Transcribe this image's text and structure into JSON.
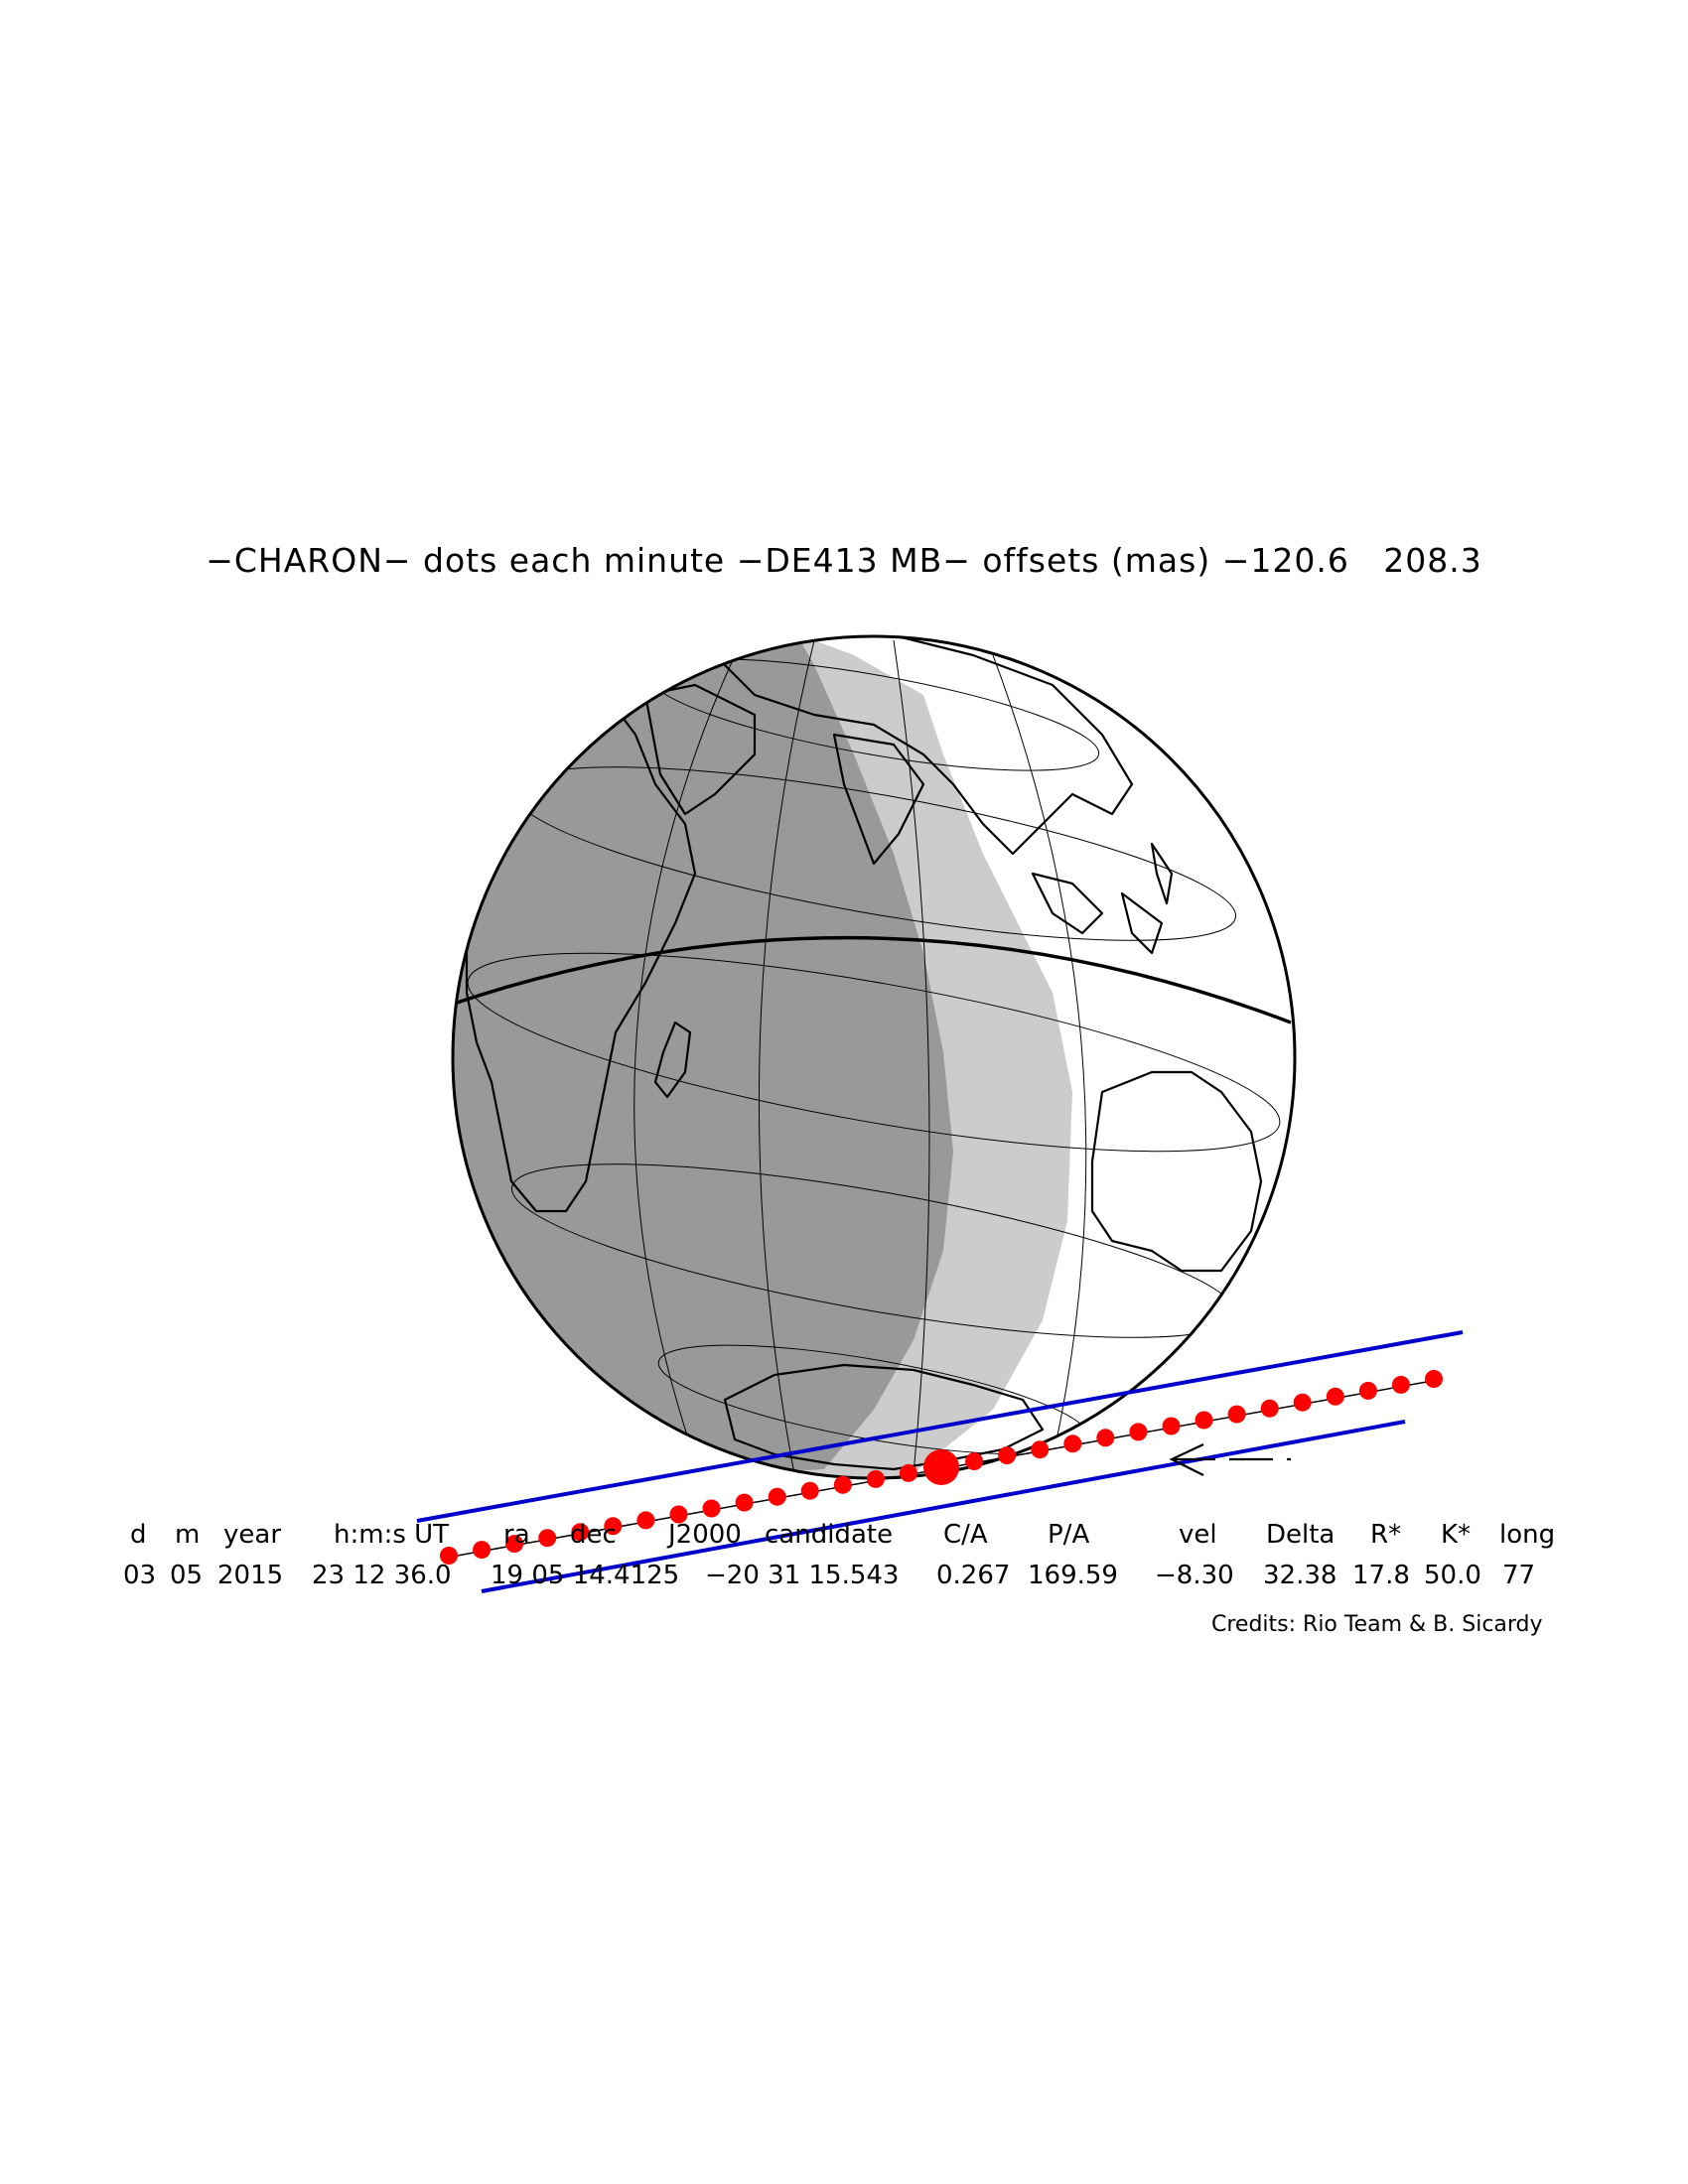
{
  "title": "−CHARON− dots each minute −DE413 MB− offsets (mas) −120.6   208.3",
  "table": {
    "headers": [
      "d",
      "m",
      "year",
      "h:m:s UT",
      "ra",
      "dec",
      "J2000",
      "candidate",
      "C/A",
      "P/A",
      "vel",
      "Delta",
      "R*",
      "K*",
      "long"
    ],
    "values": [
      "03",
      "05",
      "2015",
      "23 12 36.0",
      "19 05 14.4125",
      "−20 31 15.543",
      "0.267",
      "169.59",
      "−8.30",
      "32.38",
      "17.8",
      "50.0",
      "77"
    ]
  },
  "credits": "Credits: Rio Team & B. Sicardy",
  "colors": {
    "night": "#999999",
    "twilight": "#cccccc",
    "day": "#ffffff",
    "path_limits": "#0000cc",
    "dots": "#ff0000"
  },
  "path": {
    "dot_interval": "each minute",
    "direction": "arrow-pointing-west",
    "closest_approach_marker": "large-red-dot"
  }
}
